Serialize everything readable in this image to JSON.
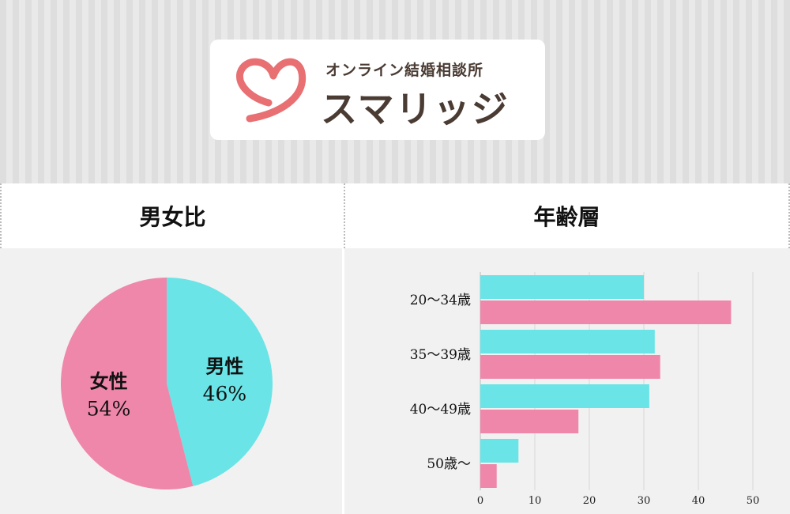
{
  "logo": {
    "tagline": "オンライン結婚相談所",
    "brand": "スマリッジ",
    "heart_color": "#e86f72",
    "text_color": "#4a3b33"
  },
  "sections": {
    "gender_title": "男女比",
    "age_title": "年齢層"
  },
  "chart_data": [
    {
      "type": "pie",
      "title": "男女比",
      "slices": [
        {
          "label": "男性",
          "value": 46,
          "display": "46%",
          "color": "#6ae4e6"
        },
        {
          "label": "女性",
          "value": 54,
          "display": "54%",
          "color": "#ef87aa"
        }
      ]
    },
    {
      "type": "bar",
      "orientation": "horizontal",
      "title": "年齢層",
      "categories": [
        "20〜34歳",
        "35〜39歳",
        "40〜49歳",
        "50歳〜"
      ],
      "series": [
        {
          "name": "男性",
          "color": "#6ae4e6",
          "values": [
            30,
            32,
            31,
            7
          ]
        },
        {
          "name": "女性",
          "color": "#ef87aa",
          "values": [
            46,
            33,
            18,
            3
          ]
        }
      ],
      "xlim": [
        0,
        50
      ],
      "xticks": [
        "0",
        "10",
        "20",
        "30",
        "40",
        "50"
      ],
      "grid": true
    }
  ]
}
